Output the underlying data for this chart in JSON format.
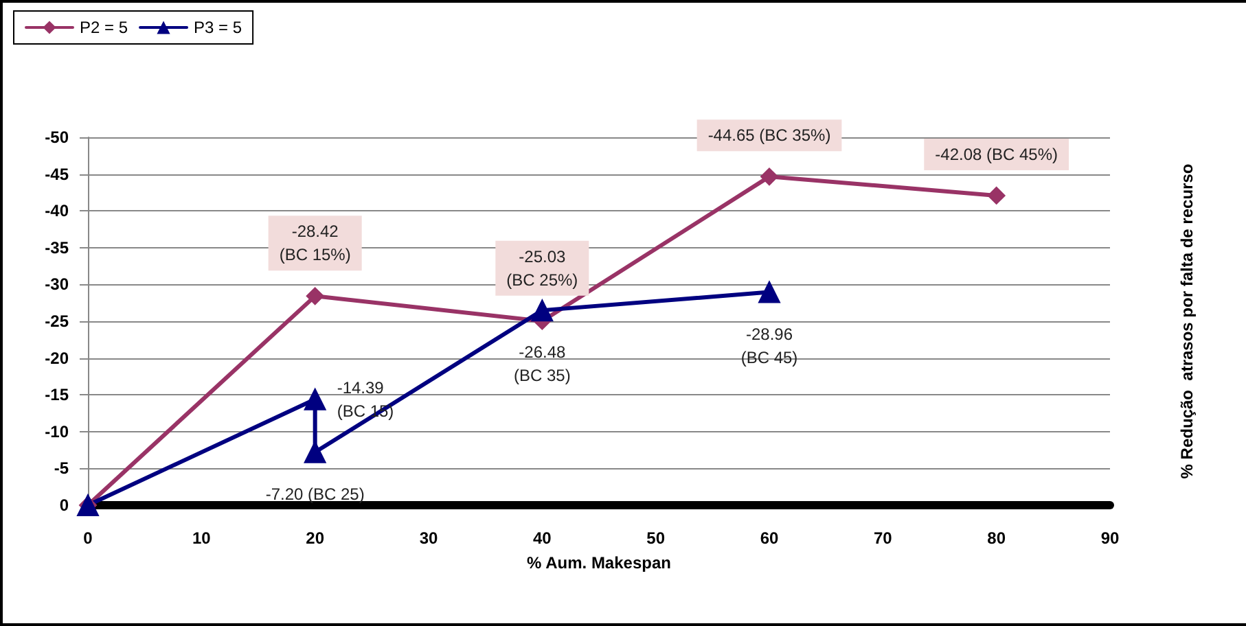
{
  "chart_data": {
    "type": "line",
    "xlabel": "% Aum. Makespan",
    "ylabel": "% Redução  atrasos por falta de recurso",
    "xlim": [
      0,
      90
    ],
    "xticks": [
      0,
      10,
      20,
      30,
      40,
      50,
      60,
      70,
      80,
      90
    ],
    "ylim": [
      0,
      -50
    ],
    "yticks": [
      0,
      -5,
      -10,
      -15,
      -20,
      -25,
      -30,
      -35,
      -40,
      -45,
      -50
    ],
    "grid": "y",
    "legend": "top left",
    "line_style": "solid",
    "series": [
      {
        "name": "P2 = 5",
        "color": "#993366",
        "marker": "diamond",
        "x": [
          0,
          20,
          40,
          60,
          80
        ],
        "values": [
          0,
          -28.42,
          -25.03,
          -44.65,
          -42.08
        ],
        "value_labels": [
          null,
          "-28.42\n(BC 15%)",
          "-25.03\n(BC 25%)",
          "-44.65 (BC 35%)",
          "-42.08 (BC 45%)"
        ]
      },
      {
        "name": "P3 = 5",
        "color": "#000080",
        "marker": "triangle",
        "x": [
          0,
          20,
          20,
          40,
          60
        ],
        "values": [
          0,
          -14.39,
          -7.2,
          -26.48,
          -28.96
        ],
        "value_labels": [
          null,
          "-14.39\n(BC 15)",
          "-7.20 (BC 25)",
          "-26.48\n(BC 35)",
          "-28.96\n(BC 45)"
        ]
      }
    ]
  }
}
